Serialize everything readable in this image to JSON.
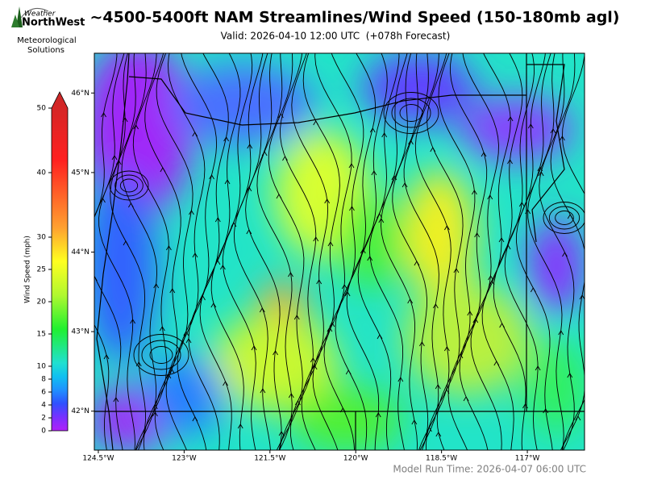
{
  "logo": {
    "line1": "Weather",
    "line2": "NorthWest",
    "caption1": "Meteorological",
    "caption2": "Solutions"
  },
  "title": "~4500-5400ft NAM Streamlines/Wind Speed (150-180mb agl)",
  "subtitle": "Valid: 2026-04-10 12:00 UTC  (+078h Forecast)",
  "footer": "Model Run Time: 2026-04-07 06:00 UTC",
  "map": {
    "xlim": [
      -124.57,
      -116.0
    ],
    "ylim": [
      41.51,
      46.5
    ],
    "lon_ticks": [
      {
        "value": -124.5,
        "label": "124.5°W"
      },
      {
        "value": -123,
        "label": "123°W"
      },
      {
        "value": -121.5,
        "label": "121.5°W"
      },
      {
        "value": -120,
        "label": "120°W"
      },
      {
        "value": -118.5,
        "label": "118.5°W"
      },
      {
        "value": -117,
        "label": "117°W"
      }
    ],
    "lat_ticks": [
      {
        "value": 46,
        "label": "46°N"
      },
      {
        "value": 45,
        "label": "45°N"
      },
      {
        "value": 44,
        "label": "44°N"
      },
      {
        "value": 43,
        "label": "43°N"
      },
      {
        "value": 42,
        "label": "42°N"
      }
    ]
  },
  "colorbar": {
    "label": "Wind Speed (mph)",
    "lim": [
      0,
      50
    ],
    "ticks": [
      0,
      2,
      4,
      6,
      8,
      10,
      15,
      20,
      25,
      30,
      40,
      50
    ]
  }
}
